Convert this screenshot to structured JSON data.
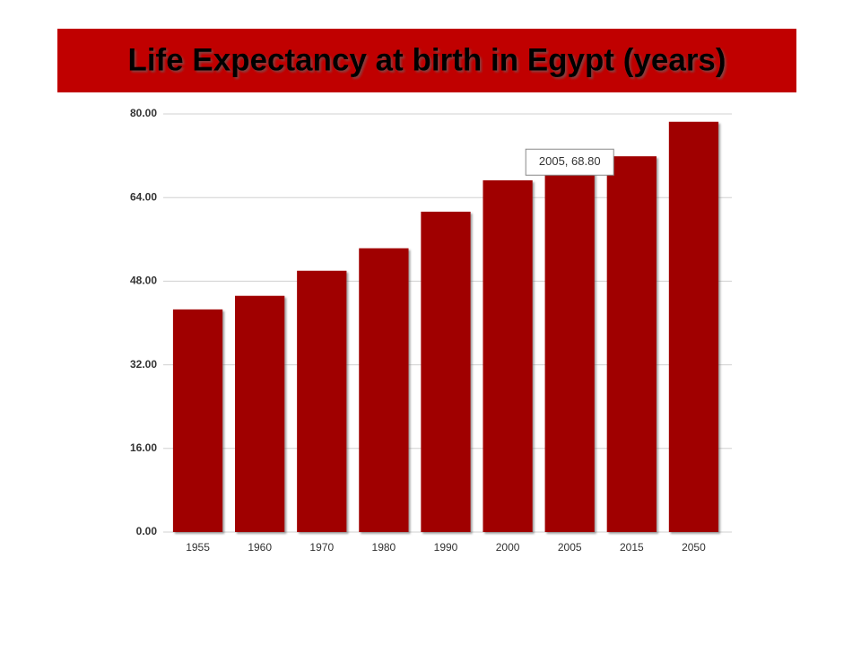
{
  "chart_data": {
    "type": "bar",
    "title": "Life Expectancy at birth in Egypt (years)",
    "categories": [
      "1955",
      "1960",
      "1970",
      "1980",
      "1990",
      "2000",
      "2005",
      "2015",
      "2050"
    ],
    "values": [
      42.6,
      45.2,
      50.0,
      54.3,
      61.3,
      67.3,
      68.8,
      71.9,
      78.5
    ],
    "color": "#a00000",
    "ylim": [
      0,
      80
    ],
    "yticks": [
      {
        "value": 0,
        "label": "0.00"
      },
      {
        "value": 16,
        "label": "16.00"
      },
      {
        "value": 32,
        "label": "32.00"
      },
      {
        "value": 48,
        "label": "48.00"
      },
      {
        "value": 64,
        "label": "64.00"
      },
      {
        "value": 80,
        "label": "80.00"
      }
    ],
    "grid": true,
    "annotation": "2005, 68.80"
  }
}
